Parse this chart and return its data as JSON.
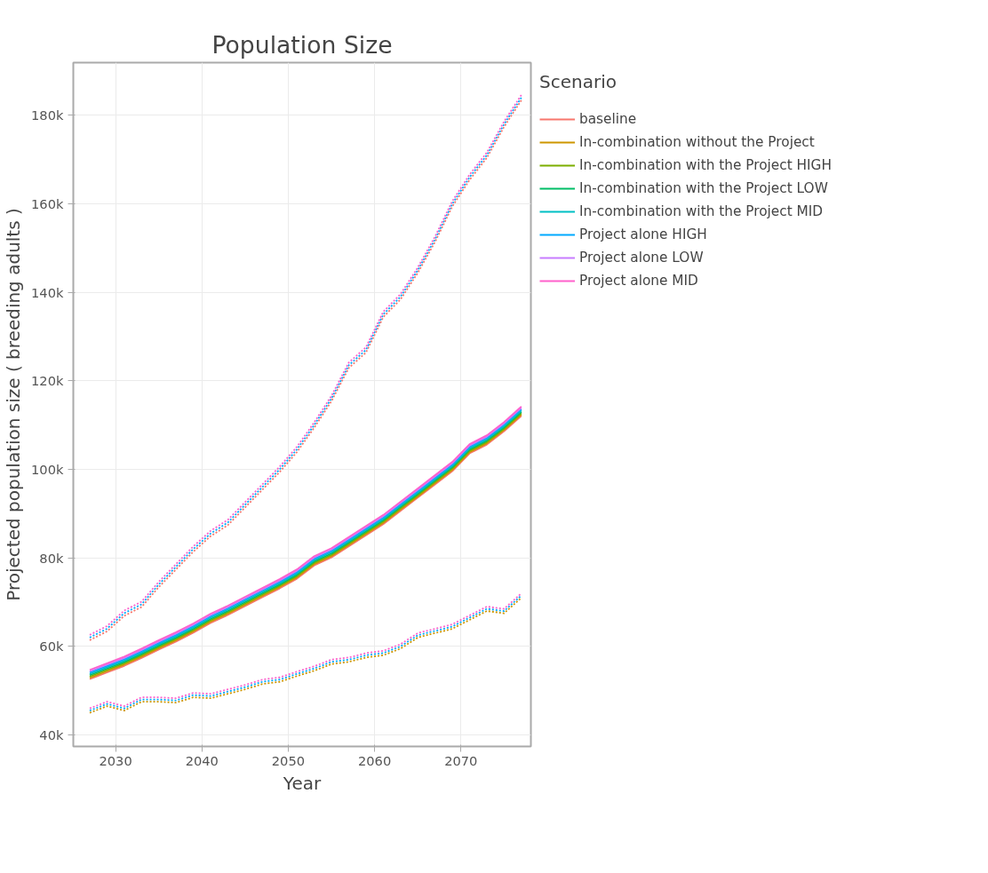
{
  "chart_data": {
    "type": "line",
    "title": "Population Size",
    "xlabel": "Year",
    "ylabel": "Projected population size ( breeding adults )",
    "legend_title": "Scenario",
    "legend": "right",
    "grid": true,
    "x": [
      2027,
      2029,
      2031,
      2033,
      2035,
      2037,
      2039,
      2041,
      2043,
      2045,
      2047,
      2049,
      2051,
      2053,
      2055,
      2057,
      2059,
      2061,
      2063,
      2065,
      2067,
      2069,
      2071,
      2073,
      2075,
      2077
    ],
    "xlim": [
      2025.1,
      2078.1
    ],
    "xticks": [
      2030,
      2040,
      2050,
      2060,
      2070
    ],
    "ylim": [
      37400,
      191900
    ],
    "yticks": [
      {
        "value": 40000,
        "label": "40k"
      },
      {
        "value": 60000,
        "label": "60k"
      },
      {
        "value": 80000,
        "label": "80k"
      },
      {
        "value": 100000,
        "label": "100k"
      },
      {
        "value": 120000,
        "label": "120k"
      },
      {
        "value": 140000,
        "label": "140k"
      },
      {
        "value": 160000,
        "label": "160k"
      },
      {
        "value": 180000,
        "label": "180k"
      }
    ],
    "series": [
      {
        "name": "baseline",
        "color": "#f8766d",
        "line_style": "solid",
        "values": [
          52600,
          54100,
          55600,
          57400,
          59300,
          61100,
          63100,
          65300,
          67100,
          69100,
          71100,
          73100,
          75300,
          78300,
          80100,
          82600,
          85100,
          87600,
          90600,
          93600,
          96600,
          99600,
          103600,
          105600,
          108600,
          112100
        ]
      },
      {
        "name": "In-combination without the Project",
        "color": "#cd9600",
        "line_style": "solid",
        "values": [
          52900,
          54400,
          55900,
          57700,
          59600,
          61400,
          63400,
          65600,
          67400,
          69400,
          71400,
          73400,
          75600,
          78600,
          80400,
          82900,
          85400,
          87900,
          90900,
          93900,
          96900,
          99900,
          103900,
          105900,
          108900,
          112400
        ]
      },
      {
        "name": "In-combination with the Project HIGH",
        "color": "#7cae00",
        "line_style": "solid",
        "values": [
          53200,
          54700,
          56200,
          58000,
          59900,
          61700,
          63700,
          65900,
          67700,
          69700,
          71700,
          73700,
          75900,
          78900,
          80700,
          83200,
          85700,
          88200,
          91200,
          94200,
          97200,
          100200,
          104200,
          106200,
          109200,
          112700
        ]
      },
      {
        "name": "In-combination with the Project LOW",
        "color": "#00be67",
        "line_style": "solid",
        "values": [
          53500,
          55000,
          56500,
          58300,
          60200,
          62000,
          64000,
          66200,
          68000,
          70000,
          72000,
          74000,
          76200,
          79200,
          81000,
          83500,
          86000,
          88500,
          91500,
          94500,
          97500,
          100500,
          104500,
          106500,
          109500,
          113000
        ]
      },
      {
        "name": "In-combination with the Project MID",
        "color": "#00bfc4",
        "line_style": "solid",
        "values": [
          53800,
          55300,
          56800,
          58600,
          60500,
          62300,
          64300,
          66500,
          68300,
          70300,
          72300,
          74300,
          76500,
          79500,
          81300,
          83800,
          86300,
          88800,
          91800,
          94800,
          97800,
          100800,
          104800,
          106800,
          109800,
          113300
        ]
      },
      {
        "name": "Project alone HIGH",
        "color": "#00a9ff",
        "line_style": "solid",
        "values": [
          54100,
          55600,
          57100,
          58900,
          60800,
          62600,
          64600,
          66800,
          68600,
          70600,
          72600,
          74600,
          76800,
          79800,
          81600,
          84100,
          86600,
          89100,
          92100,
          95100,
          98100,
          101100,
          105100,
          107100,
          110100,
          113600
        ]
      },
      {
        "name": "Project alone LOW",
        "color": "#c77cff",
        "line_style": "solid",
        "values": [
          54400,
          55900,
          57400,
          59200,
          61100,
          62900,
          64900,
          67100,
          68900,
          70900,
          72900,
          74900,
          77100,
          80100,
          81900,
          84400,
          86900,
          89400,
          92400,
          95400,
          98400,
          101400,
          105400,
          107400,
          110400,
          113900
        ]
      },
      {
        "name": "Project alone MID",
        "color": "#ff61cc",
        "line_style": "solid",
        "values": [
          54700,
          56200,
          57700,
          59500,
          61400,
          63200,
          65200,
          67400,
          69200,
          71200,
          73200,
          75200,
          77400,
          80400,
          82200,
          84700,
          87200,
          89700,
          92700,
          95700,
          98700,
          101700,
          105700,
          107700,
          110700,
          114200
        ]
      },
      {
        "color": "#f8766d",
        "line_style": "dotted",
        "values": [
          61400,
          63400,
          66900,
          68900,
          73400,
          77400,
          81400,
          84900,
          87400,
          91400,
          95400,
          99400,
          103900,
          109400,
          115400,
          122900,
          126400,
          134400,
          138400,
          144400,
          151400,
          159400,
          165400,
          170400,
          177400,
          183400
        ]
      },
      {
        "color": "#00a9ff",
        "line_style": "dotted",
        "values": [
          62000,
          64000,
          67500,
          69500,
          74000,
          78000,
          82000,
          85500,
          88000,
          92000,
          96000,
          100000,
          104500,
          110000,
          116000,
          123500,
          127000,
          135000,
          139000,
          145000,
          152000,
          160000,
          166000,
          171000,
          178000,
          184000
        ]
      },
      {
        "color": "#ff61cc",
        "line_style": "dotted",
        "values": [
          62600,
          64600,
          68100,
          70100,
          74600,
          78600,
          82600,
          86100,
          88600,
          92600,
          96600,
          100600,
          105100,
          110600,
          116600,
          124100,
          127600,
          135600,
          139600,
          145600,
          152600,
          160600,
          166600,
          171600,
          178600,
          184600
        ]
      },
      {
        "color": "#cd9600",
        "line_style": "dotted",
        "values": [
          45000,
          46500,
          45500,
          47500,
          47500,
          47300,
          48500,
          48300,
          49300,
          50300,
          51500,
          52000,
          53300,
          54500,
          56000,
          56500,
          57500,
          58000,
          59500,
          62000,
          63000,
          64000,
          66000,
          68000,
          67500,
          71000
        ]
      },
      {
        "color": "#00a9ff",
        "line_style": "dotted",
        "values": [
          45500,
          47000,
          46000,
          48000,
          48000,
          47800,
          49000,
          48800,
          49800,
          50800,
          52000,
          52500,
          53800,
          55000,
          56500,
          57000,
          58000,
          58500,
          60000,
          62500,
          63500,
          64500,
          66500,
          68500,
          68000,
          71500
        ]
      },
      {
        "color": "#ff61cc",
        "line_style": "dotted",
        "values": [
          46000,
          47500,
          46500,
          48500,
          48500,
          48300,
          49500,
          49300,
          50300,
          51300,
          52500,
          53000,
          54300,
          55500,
          57000,
          57500,
          58500,
          59000,
          60500,
          63000,
          64000,
          65000,
          67000,
          69000,
          68500,
          72000
        ]
      }
    ]
  }
}
